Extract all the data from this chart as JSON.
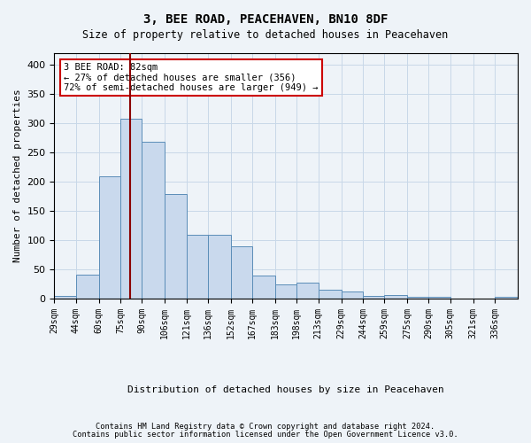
{
  "title": "3, BEE ROAD, PEACEHAVEN, BN10 8DF",
  "subtitle": "Size of property relative to detached houses in Peacehaven",
  "xlabel": "Distribution of detached houses by size in Peacehaven",
  "ylabel": "Number of detached properties",
  "footer_line1": "Contains HM Land Registry data © Crown copyright and database right 2024.",
  "footer_line2": "Contains public sector information licensed under the Open Government Licence v3.0.",
  "bar_color": "#c9d9ed",
  "bar_edge_color": "#5b8db8",
  "grid_color": "#c8d8e8",
  "vline_color": "#8b0000",
  "vline_x": 82,
  "annotation_text": "3 BEE ROAD: 82sqm\n← 27% of detached houses are smaller (356)\n72% of semi-detached houses are larger (949) →",
  "annotation_box_color": "#ffffff",
  "annotation_box_edge": "#cc0000",
  "bin_edges": [
    29,
    44,
    60,
    75,
    90,
    106,
    121,
    136,
    152,
    167,
    183,
    198,
    213,
    229,
    244,
    259,
    275,
    290,
    305,
    321,
    336,
    352
  ],
  "bin_heights": [
    5,
    42,
    209,
    308,
    268,
    179,
    109,
    109,
    90,
    40,
    25,
    27,
    15,
    13,
    5,
    7,
    4,
    4,
    0,
    0,
    4
  ],
  "ylim": [
    0,
    420
  ],
  "yticks": [
    0,
    50,
    100,
    150,
    200,
    250,
    300,
    350,
    400
  ],
  "background_color": "#eef3f8",
  "plot_background": "#eef3f8"
}
